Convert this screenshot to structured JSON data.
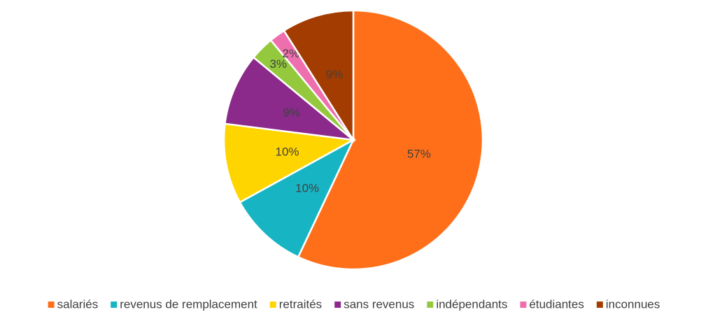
{
  "chart_data": {
    "type": "pie",
    "categories": [
      "salariés",
      "revenus de remplacement",
      "retraités",
      "sans revenus",
      "indépendants",
      "étudiantes",
      "inconnues"
    ],
    "values": [
      57,
      10,
      10,
      9,
      3,
      2,
      9
    ],
    "value_labels": [
      "57%",
      "10%",
      "10%",
      "9%",
      "3%",
      "2%",
      "9%"
    ],
    "colors": [
      "#FF6F1A",
      "#17B5C4",
      "#FFD500",
      "#8B2A8B",
      "#94C93D",
      "#EE6FAE",
      "#A33C00"
    ],
    "legend": "bottom"
  }
}
